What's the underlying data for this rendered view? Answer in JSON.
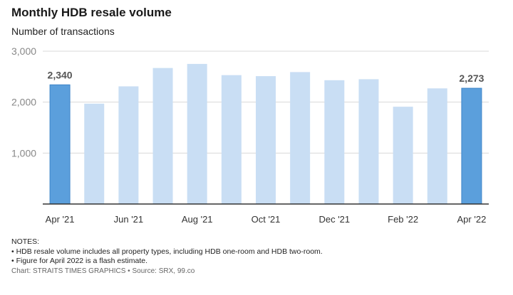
{
  "chart_data": {
    "type": "bar",
    "title": "Monthly HDB resale volume",
    "subtitle": "Number of transactions",
    "categories": [
      "Apr '21",
      "May '21",
      "Jun '21",
      "Jul '21",
      "Aug '21",
      "Sep '21",
      "Oct '21",
      "Nov '21",
      "Dec '21",
      "Jan '22",
      "Feb '22",
      "Mar '22",
      "Apr '22"
    ],
    "tick_labels": [
      "Apr '21",
      "",
      "Jun '21",
      "",
      "Aug '21",
      "",
      "Oct '21",
      "",
      "Dec '21",
      "",
      "Feb '22",
      "",
      "Apr '22"
    ],
    "values": [
      2340,
      1970,
      2310,
      2670,
      2750,
      2530,
      2510,
      2590,
      2430,
      2450,
      1910,
      2270,
      2273
    ],
    "highlight": [
      true,
      false,
      false,
      false,
      false,
      false,
      false,
      false,
      false,
      false,
      false,
      false,
      true
    ],
    "data_labels": [
      "2,340",
      "",
      "",
      "",
      "",
      "",
      "",
      "",
      "",
      "",
      "",
      "",
      "2,273"
    ],
    "ylim": [
      0,
      3000
    ],
    "yticks": [
      1000,
      2000,
      3000
    ],
    "ytick_labels": [
      "1,000",
      "2,000",
      "3,000"
    ],
    "grid": true,
    "colors": {
      "highlight": "#5b9fdc",
      "normal": "#c9def4",
      "highlight_stroke": "#3f86c9",
      "grid": "#d9d9d9",
      "axis": "#333333"
    }
  },
  "notes": {
    "heading": "NOTES:",
    "lines": [
      "• HDB resale volume includes all property types, including HDB one-room and HDB two-room.",
      "• Figure for April 2022 is a flash estimate."
    ]
  },
  "credit": "Chart: STRAITS TIMES GRAPHICS • Source: SRX, 99.co"
}
